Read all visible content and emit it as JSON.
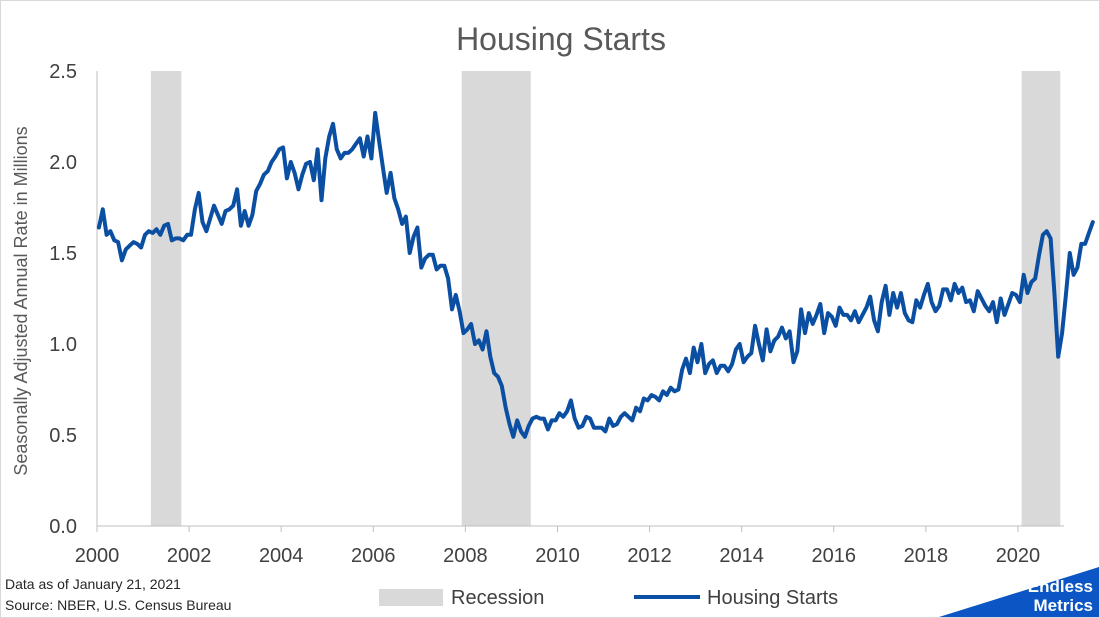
{
  "colors": {
    "line": "#0b4fa3",
    "recession": "#d9d9d9",
    "axis": "#bfbfbf",
    "logo": "#0b56c4"
  },
  "footer": {
    "data_as_of": "Data as of January 21, 2021",
    "source": "Source: NBER, U.S. Census Bureau"
  },
  "logo": {
    "line1": "Endless",
    "line2": "Metrics"
  },
  "chart_data": {
    "type": "line",
    "title": "Housing Starts",
    "ylabel": "Seasonally Adjusted Annual Rate in Millions",
    "xlabel": "",
    "xlim": [
      2000,
      2021
    ],
    "ylim": [
      0,
      2.5
    ],
    "x_ticks": [
      2000,
      2002,
      2004,
      2006,
      2008,
      2010,
      2012,
      2014,
      2016,
      2018,
      2020
    ],
    "y_ticks": [
      "0.0",
      "0.5",
      "1.0",
      "1.5",
      "2.0",
      "2.5"
    ],
    "grid": false,
    "legend": {
      "placement": "bottom",
      "entries": [
        "Recession",
        "Housing Starts"
      ]
    },
    "recessions": [
      {
        "name": "Recession",
        "start": 2001.17,
        "end": 2001.83
      },
      {
        "name": "Recession",
        "start": 2007.92,
        "end": 2009.42
      },
      {
        "name": "Recession",
        "start": 2020.08,
        "end": 2020.92
      }
    ],
    "series": [
      {
        "name": "Housing Starts",
        "start_year": 2000,
        "frequency": "monthly",
        "values": [
          1.64,
          1.74,
          1.6,
          1.62,
          1.57,
          1.56,
          1.46,
          1.52,
          1.54,
          1.56,
          1.55,
          1.53,
          1.6,
          1.62,
          1.61,
          1.63,
          1.6,
          1.65,
          1.66,
          1.57,
          1.58,
          1.58,
          1.57,
          1.6,
          1.6,
          1.74,
          1.83,
          1.67,
          1.62,
          1.69,
          1.76,
          1.71,
          1.66,
          1.73,
          1.74,
          1.76,
          1.85,
          1.65,
          1.73,
          1.65,
          1.71,
          1.84,
          1.88,
          1.93,
          1.95,
          2.0,
          2.03,
          2.07,
          2.08,
          1.91,
          2.0,
          1.94,
          1.85,
          1.93,
          1.99,
          2.0,
          1.9,
          2.07,
          1.79,
          2.02,
          2.14,
          2.21,
          2.07,
          2.02,
          2.05,
          2.05,
          2.07,
          2.1,
          2.13,
          2.03,
          2.14,
          2.02,
          2.27,
          2.12,
          1.97,
          1.83,
          1.94,
          1.8,
          1.74,
          1.66,
          1.7,
          1.5,
          1.59,
          1.64,
          1.42,
          1.47,
          1.49,
          1.49,
          1.41,
          1.43,
          1.43,
          1.36,
          1.19,
          1.27,
          1.18,
          1.06,
          1.08,
          1.11,
          1.0,
          1.02,
          0.97,
          1.07,
          0.93,
          0.84,
          0.82,
          0.77,
          0.65,
          0.56,
          0.49,
          0.58,
          0.52,
          0.49,
          0.55,
          0.59,
          0.6,
          0.59,
          0.59,
          0.53,
          0.58,
          0.58,
          0.62,
          0.6,
          0.63,
          0.69,
          0.59,
          0.54,
          0.55,
          0.6,
          0.59,
          0.54,
          0.54,
          0.54,
          0.52,
          0.59,
          0.55,
          0.56,
          0.6,
          0.62,
          0.6,
          0.58,
          0.65,
          0.63,
          0.7,
          0.69,
          0.72,
          0.71,
          0.69,
          0.74,
          0.72,
          0.76,
          0.74,
          0.75,
          0.86,
          0.92,
          0.84,
          0.98,
          0.9,
          1.0,
          0.84,
          0.89,
          0.91,
          0.84,
          0.88,
          0.88,
          0.85,
          0.89,
          0.97,
          1.0,
          0.9,
          0.93,
          0.95,
          1.1,
          1.0,
          0.91,
          1.08,
          0.96,
          1.02,
          1.04,
          1.09,
          1.03,
          1.07,
          0.9,
          0.96,
          1.19,
          1.06,
          1.17,
          1.11,
          1.16,
          1.22,
          1.06,
          1.17,
          1.15,
          1.1,
          1.2,
          1.16,
          1.16,
          1.13,
          1.18,
          1.12,
          1.16,
          1.2,
          1.26,
          1.13,
          1.07,
          1.23,
          1.32,
          1.16,
          1.28,
          1.2,
          1.28,
          1.17,
          1.13,
          1.12,
          1.24,
          1.2,
          1.27,
          1.33,
          1.23,
          1.18,
          1.21,
          1.3,
          1.3,
          1.24,
          1.33,
          1.28,
          1.31,
          1.23,
          1.24,
          1.18,
          1.29,
          1.25,
          1.21,
          1.18,
          1.23,
          1.12,
          1.25,
          1.16,
          1.22,
          1.28,
          1.27,
          1.23,
          1.38,
          1.28,
          1.34,
          1.36,
          1.49,
          1.6,
          1.62,
          1.58,
          1.28,
          0.93,
          1.06,
          1.27,
          1.5,
          1.38,
          1.42,
          1.55,
          1.55,
          1.61,
          1.67
        ]
      }
    ]
  }
}
